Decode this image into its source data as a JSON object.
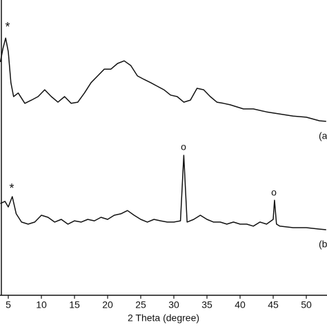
{
  "chart_data": {
    "type": "line",
    "x_label": "2 Theta (degree)",
    "xlim": [
      3.75,
      53.125
    ],
    "xticks": [
      5,
      10,
      15,
      20,
      25,
      30,
      35,
      40,
      45,
      50
    ],
    "ylim": [
      0,
      100
    ],
    "annotations": [
      "*",
      "*",
      "o",
      "o"
    ],
    "series": [
      {
        "name": "(a",
        "color": "#111111",
        "x": [
          3.8,
          4.2,
          4.6,
          5.0,
          5.4,
          5.8,
          6.5,
          7.5,
          8.5,
          9.5,
          10.5,
          11.5,
          12.5,
          13.5,
          14.5,
          15.5,
          16.5,
          17.5,
          18.5,
          19.5,
          20.5,
          21.5,
          22.5,
          23.5,
          24.5,
          25.5,
          26.5,
          27.5,
          28.5,
          29.5,
          30.5,
          31.5,
          32.5,
          33.5,
          34.5,
          35.5,
          36.5,
          37.5,
          38.5,
          39.5,
          40.5,
          42,
          44,
          46,
          48,
          50,
          52,
          53
        ],
        "values": [
          79.0,
          83.6,
          87.1,
          82.5,
          72.0,
          67.3,
          68.5,
          65.0,
          66.1,
          67.3,
          69.6,
          67.3,
          65.4,
          67.3,
          65.0,
          65.4,
          68.5,
          72.0,
          74.3,
          76.6,
          76.6,
          78.5,
          79.4,
          77.8,
          74.3,
          73.1,
          72.0,
          70.8,
          69.6,
          67.8,
          67.3,
          65.4,
          66.1,
          70.1,
          69.6,
          67.3,
          65.4,
          65.0,
          64.5,
          63.8,
          63.1,
          63.1,
          62.1,
          61.4,
          60.7,
          60.3,
          59.1,
          58.9
        ]
      },
      {
        "name": "(b",
        "color": "#111111",
        "x": [
          3.8,
          4.5,
          5.0,
          5.6,
          6.2,
          7,
          8,
          9,
          10,
          11,
          12,
          13,
          14,
          15,
          16,
          17,
          18,
          19,
          20,
          21,
          22,
          23,
          24,
          25,
          26,
          27,
          28,
          29,
          30,
          31,
          31.5,
          32,
          33,
          34,
          35,
          36,
          37,
          38,
          39,
          40,
          41,
          42,
          43,
          44,
          45,
          45.2,
          45.5,
          46,
          48,
          50,
          52,
          53
        ],
        "values": [
          31.1,
          31.8,
          29.9,
          33.4,
          27.6,
          24.8,
          24.1,
          24.8,
          27.1,
          26.4,
          24.8,
          25.7,
          24.1,
          25.2,
          24.8,
          25.7,
          25.2,
          26.4,
          25.7,
          27.1,
          27.6,
          28.7,
          27.1,
          25.7,
          24.8,
          25.7,
          25.2,
          24.8,
          24.8,
          25.2,
          47.4,
          24.8,
          25.7,
          27.1,
          25.7,
          24.8,
          24.8,
          24.1,
          24.8,
          24.1,
          24.1,
          23.4,
          24.8,
          24.1,
          25.7,
          32.2,
          24.1,
          23.4,
          22.9,
          22.9,
          22.4,
          22.2
        ]
      }
    ]
  }
}
